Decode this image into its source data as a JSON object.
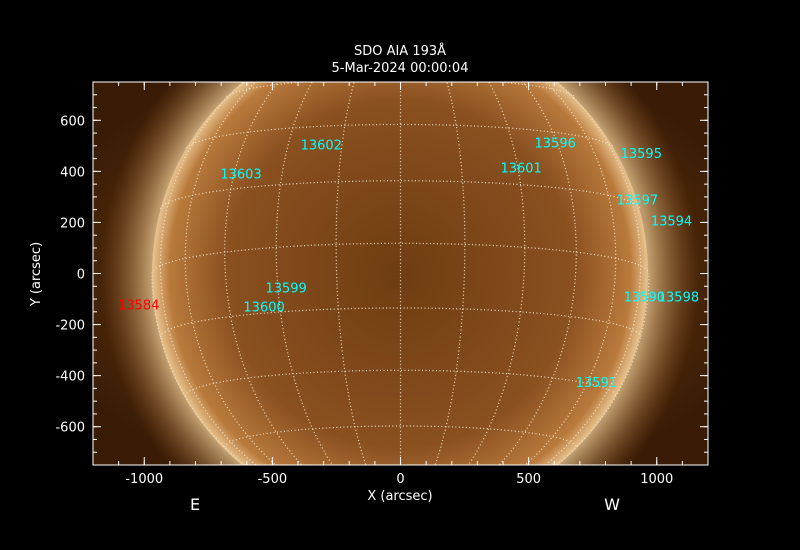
{
  "chart_data": {
    "type": "image",
    "title": "SDO AIA 193Å",
    "subtitle": "5-Mar-2024 00:00:04",
    "xlabel": "X (arcsec)",
    "ylabel": "Y (arcsec)",
    "xlim": [
      -1200,
      1200
    ],
    "ylim": [
      -750,
      750
    ],
    "xticks": [
      -1000,
      -500,
      0,
      500,
      1000
    ],
    "yticks": [
      -600,
      -400,
      -200,
      0,
      200,
      400,
      600
    ],
    "direction_labels": {
      "east": "E",
      "west": "W"
    },
    "grid": "heliographic lat/lon, dotted",
    "colors": {
      "sun_bright": "#fbe6c0",
      "sun_mid": "#a8652a",
      "sun_dark": "#3a1c06",
      "label": "#00ffff",
      "label_alt": "#ff0000",
      "grid": "#f3e3c6"
    },
    "regions": [
      {
        "label": "13603",
        "x": -703,
        "y": 392,
        "color": "#00ffff"
      },
      {
        "label": "13602",
        "x": -390,
        "y": 506,
        "color": "#00ffff"
      },
      {
        "label": "13596",
        "x": 523,
        "y": 514,
        "color": "#00ffff"
      },
      {
        "label": "13601",
        "x": 390,
        "y": 416,
        "color": "#00ffff"
      },
      {
        "label": "13595",
        "x": 859,
        "y": 471,
        "color": "#00ffff"
      },
      {
        "label": "13597",
        "x": 844,
        "y": 290,
        "color": "#00ffff"
      },
      {
        "label": "13594",
        "x": 977,
        "y": 208,
        "color": "#00ffff"
      },
      {
        "label": "13599",
        "x": -527,
        "y": -55,
        "color": "#00ffff"
      },
      {
        "label": "13600",
        "x": -613,
        "y": -129,
        "color": "#00ffff"
      },
      {
        "label": "13584",
        "x": -1102,
        "y": -122,
        "color": "#ff0000"
      },
      {
        "label": "13590",
        "x": 871,
        "y": -90,
        "color": "#00ffff"
      },
      {
        "label": "13598",
        "x": 1004,
        "y": -90,
        "color": "#00ffff"
      },
      {
        "label": "13591",
        "x": 684,
        "y": -424,
        "color": "#00ffff"
      }
    ]
  }
}
